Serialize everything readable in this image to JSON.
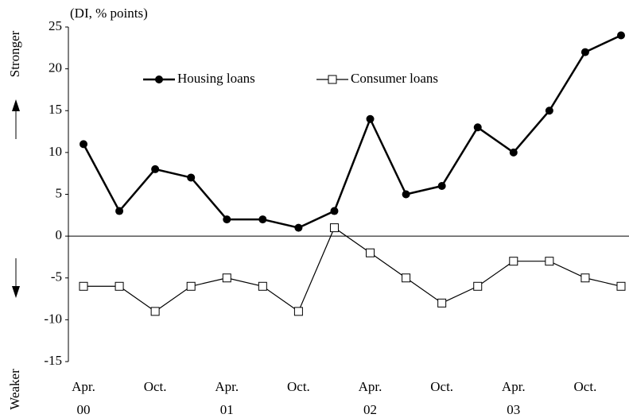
{
  "chart_data": {
    "type": "line",
    "y_label": "(DI, % points)",
    "upper_annotation": "Stronger",
    "lower_annotation": "Weaker",
    "categories": [
      "Apr.",
      null,
      "Oct.",
      null,
      "Apr.",
      null,
      "Oct.",
      null,
      "Apr.",
      null,
      "Oct.",
      null,
      "Apr.",
      null,
      "Oct.",
      null
    ],
    "category_years": [
      "00",
      null,
      null,
      null,
      "01",
      null,
      null,
      null,
      "02",
      null,
      null,
      null,
      "03",
      null,
      null,
      null
    ],
    "series": [
      {
        "name": "Housing loans",
        "color": "#000000",
        "marker": "circle",
        "values": [
          11,
          3,
          8,
          7,
          2,
          2,
          1,
          3,
          14,
          5,
          6,
          13,
          10,
          15,
          22,
          24
        ]
      },
      {
        "name": "Consumer loans",
        "color": "#000000",
        "marker": "square",
        "values": [
          -6,
          -6,
          -9,
          -6,
          -5,
          -6,
          -9,
          1,
          -2,
          -5,
          -8,
          -6,
          -3,
          -3,
          -5,
          -6
        ]
      }
    ],
    "ylim": [
      -15,
      25
    ],
    "yticks": [
      -15,
      -10,
      -5,
      0,
      5,
      10,
      15,
      20,
      25
    ]
  }
}
